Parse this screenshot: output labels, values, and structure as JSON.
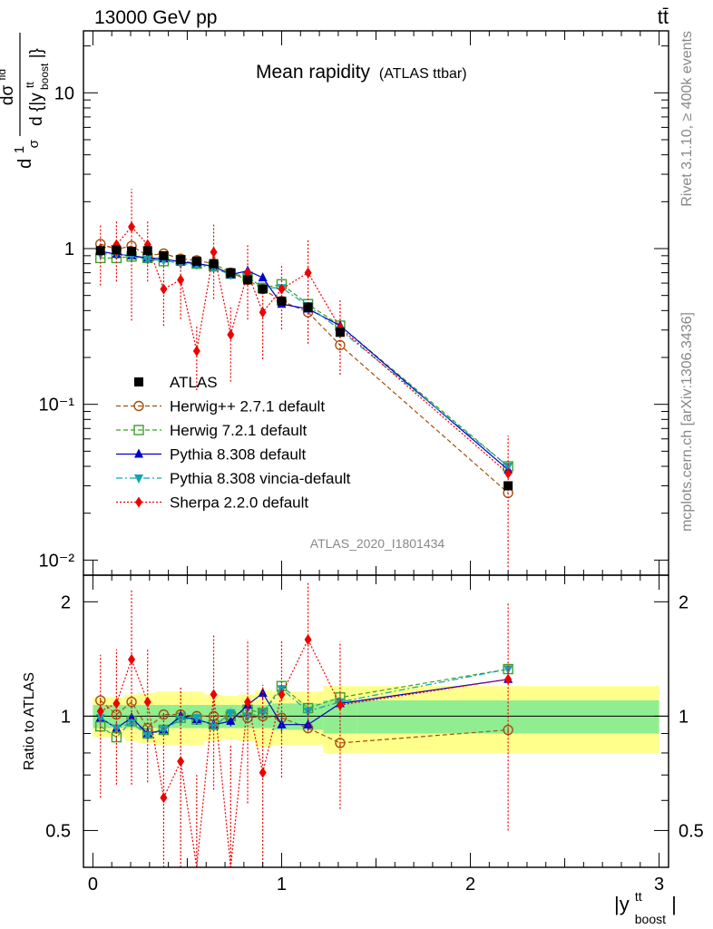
{
  "header": {
    "left": "13000 GeV pp",
    "right": "tt̄"
  },
  "title": "Mean rapidity",
  "subtitle": "(ATLAS ttbar)",
  "analysis_id": "ATLAS_2020_I1801434",
  "side_text": {
    "rivet": "Rivet 3.1.10, ≥ 400k events",
    "url": "mcplots.cern.ch [arXiv:1306.3436]"
  },
  "ylabel_main": {
    "frac_num_1": "1",
    "frac_den_1": "σ",
    "frac_num_2": "dσ",
    "frac_num_2_sup": "fid",
    "frac_den_2": "d {|y",
    "frac_den_2_sup": "tt",
    "frac_den_2_sub": "boost",
    "frac_den_2_end": "|}"
  },
  "ylabel_ratio": "Ratio to ATLAS",
  "xlabel": {
    "base": "|y",
    "sup": "tt",
    "sub": "boost",
    "end": "|"
  },
  "colors": {
    "atlas": "#000000",
    "herwigpp": "#a0520d",
    "herwig7": "#3fa02a",
    "pythia": "#0000cc",
    "vincia": "#13a3b3",
    "sherpa": "#ee0000",
    "band_inner": "#90ee90",
    "band_outer": "#ffff8c"
  },
  "chart_data": {
    "type": "line",
    "x_scale": "linear",
    "main_y_scale": "log",
    "xlim": [
      -0.05,
      3.05
    ],
    "main_ylim": [
      0.008,
      25
    ],
    "ratio_ylim": [
      0.4,
      2.35
    ],
    "x_ticks": [
      "0",
      "1",
      "2",
      "3"
    ],
    "main_y_ticks": [
      "10",
      "1",
      "10⁻¹",
      "10⁻²"
    ],
    "ratio_y_ticks": [
      "2",
      "1",
      "0.5"
    ],
    "ratio_y_ticks_right": [
      "2",
      "1",
      "0.5"
    ],
    "x": [
      0.04,
      0.125,
      0.205,
      0.29,
      0.375,
      0.465,
      0.55,
      0.64,
      0.73,
      0.82,
      0.9,
      1.0,
      1.14,
      1.31,
      2.2
    ],
    "x_edges": [
      0.0,
      0.08,
      0.17,
      0.24,
      0.33,
      0.42,
      0.51,
      0.59,
      0.68,
      0.77,
      0.86,
      0.95,
      1.06,
      1.22,
      1.4,
      3.0
    ],
    "legend": {
      "position": "lower-left",
      "entries": [
        "ATLAS",
        "Herwig++ 2.7.1 default",
        "Herwig 7.2.1 default",
        "Pythia 8.308 default",
        "Pythia 8.308 vincia-default",
        "Sherpa 2.2.0 default"
      ]
    },
    "data_series": {
      "name": "ATLAS",
      "values": [
        0.97,
        0.98,
        0.96,
        0.97,
        0.9,
        0.85,
        0.83,
        0.8,
        0.7,
        0.63,
        0.55,
        0.46,
        0.42,
        0.29,
        0.03
      ],
      "ratio_band_inner": [
        0.07,
        0.07,
        0.07,
        0.07,
        0.07,
        0.07,
        0.07,
        0.07,
        0.07,
        0.07,
        0.07,
        0.08,
        0.08,
        0.1,
        0.1
      ],
      "ratio_band_outer": [
        0.12,
        0.12,
        0.14,
        0.15,
        0.16,
        0.16,
        0.16,
        0.14,
        0.13,
        0.14,
        0.17,
        0.16,
        0.16,
        0.2,
        0.2
      ]
    },
    "series": [
      {
        "name": "Herwig++ 2.7.1 default",
        "style": "dashed",
        "marker": "open-circle",
        "values": [
          1.07,
          0.99,
          1.04,
          0.9,
          0.93,
          0.86,
          0.84,
          0.8,
          0.7,
          0.63,
          0.55,
          0.46,
          0.39,
          0.24,
          0.027
        ],
        "ratio": [
          1.1,
          1.01,
          1.09,
          0.93,
          1.01,
          1.01,
          1.0,
          1.0,
          1.0,
          0.99,
          1.0,
          0.99,
          0.93,
          0.85,
          0.92
        ],
        "ratio_err": [
          0.02,
          0.02,
          0.02,
          0.02,
          0.02,
          0.02,
          0.02,
          0.02,
          0.02,
          0.02,
          0.02,
          0.02,
          0.02,
          0.02,
          0.02
        ]
      },
      {
        "name": "Herwig 7.2.1 default",
        "style": "dashed",
        "marker": "open-square",
        "values": [
          0.87,
          0.87,
          0.89,
          0.87,
          0.83,
          0.84,
          0.8,
          0.77,
          0.69,
          0.66,
          0.56,
          0.59,
          0.44,
          0.32,
          0.04
        ],
        "ratio": [
          0.94,
          0.88,
          0.97,
          0.9,
          0.92,
          0.99,
          0.98,
          0.95,
          1.0,
          1.04,
          1.02,
          1.2,
          1.05,
          1.12,
          1.33
        ],
        "ratio_err": [
          0.02,
          0.02,
          0.02,
          0.02,
          0.02,
          0.02,
          0.02,
          0.02,
          0.02,
          0.02,
          0.02,
          0.03,
          0.03,
          0.03,
          0.03
        ]
      },
      {
        "name": "Pythia 8.308 default",
        "style": "solid",
        "marker": "filled-triangle-up",
        "values": [
          0.96,
          0.92,
          0.9,
          0.87,
          0.86,
          0.82,
          0.8,
          0.77,
          0.68,
          0.72,
          0.65,
          0.44,
          0.41,
          0.32,
          0.038
        ],
        "ratio": [
          0.99,
          0.93,
          0.99,
          0.9,
          0.92,
          1.0,
          0.98,
          0.95,
          0.97,
          1.07,
          1.15,
          0.95,
          0.95,
          1.08,
          1.25
        ],
        "ratio_err": [
          0.03,
          0.03,
          0.03,
          0.03,
          0.03,
          0.03,
          0.03,
          0.03,
          0.03,
          0.04,
          0.04,
          0.04,
          0.03,
          0.03,
          0.03
        ]
      },
      {
        "name": "Pythia 8.308 vincia-default",
        "style": "dashdot",
        "marker": "filled-triangle-down",
        "values": [
          0.92,
          0.93,
          0.89,
          0.85,
          0.84,
          0.8,
          0.79,
          0.75,
          0.68,
          0.66,
          0.56,
          0.56,
          0.43,
          0.3,
          0.04
        ],
        "ratio": [
          0.99,
          0.93,
          0.96,
          0.89,
          0.92,
          0.98,
          0.99,
          0.94,
          1.02,
          1.0,
          1.02,
          1.18,
          1.03,
          1.09,
          1.33
        ],
        "ratio_err": [
          0.03,
          0.03,
          0.03,
          0.03,
          0.03,
          0.03,
          0.03,
          0.03,
          0.03,
          0.04,
          0.04,
          0.04,
          0.03,
          0.03,
          0.03
        ]
      },
      {
        "name": "Sherpa 2.2.0 default",
        "style": "dotted",
        "marker": "filled-diamond",
        "values": [
          1.0,
          1.06,
          1.38,
          1.06,
          0.55,
          0.63,
          0.22,
          0.95,
          0.28,
          0.7,
          0.39,
          0.55,
          0.7,
          0.31,
          0.036
        ],
        "ratio": [
          1.03,
          1.08,
          1.41,
          1.09,
          0.61,
          0.76,
          0.26,
          1.14,
          0.34,
          1.09,
          0.71,
          1.14,
          1.59,
          1.07,
          1.25
        ],
        "ratio_err": [
          0.42,
          0.42,
          0.75,
          0.42,
          0.42,
          0.44,
          0.44,
          0.5,
          0.5,
          0.5,
          0.5,
          0.45,
          0.65,
          0.5,
          0.75
        ]
      }
    ]
  }
}
